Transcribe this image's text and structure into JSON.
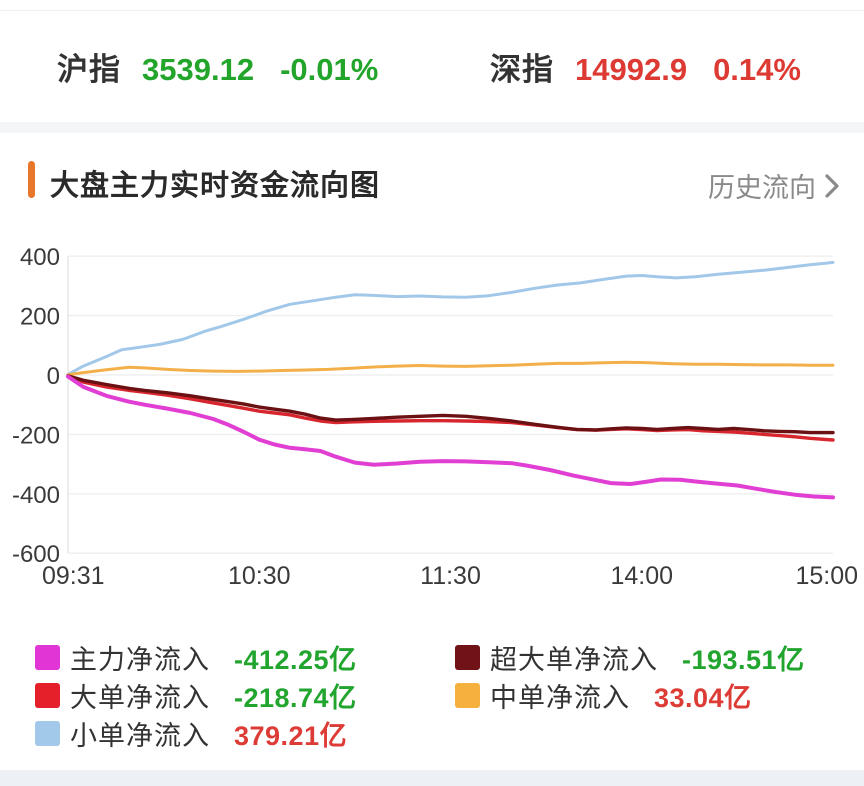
{
  "header": {
    "indices": [
      {
        "name": "沪指",
        "value": "3539.12",
        "change": "-0.01%",
        "color": "#23a42b"
      },
      {
        "name": "深指",
        "value": "14992.9",
        "change": "0.14%",
        "color": "#dd3a33"
      }
    ]
  },
  "section": {
    "title": "大盘主力实时资金流向图",
    "history_link": "历史流向",
    "accent_color": "#e8762b"
  },
  "chart_data": {
    "type": "line",
    "title": "大盘主力实时资金流向图",
    "unit": "亿",
    "grid": true,
    "legend_position": "bottom",
    "ylim": [
      -600,
      400
    ],
    "y_ticks": [
      400,
      200,
      0,
      -200,
      -400,
      -600
    ],
    "x_ticks": [
      "09:31",
      "10:30",
      "11:30",
      "14:00",
      "15:00"
    ],
    "axis_color": "#3a3a3a",
    "grid_color": "#efefef",
    "series": [
      {
        "name": "小单净流入",
        "final_value": 379.21,
        "color": "#a2c8e9",
        "width": 3,
        "points": [
          [
            0,
            2
          ],
          [
            0.02,
            30
          ],
          [
            0.05,
            62
          ],
          [
            0.07,
            85
          ],
          [
            0.09,
            92
          ],
          [
            0.12,
            103
          ],
          [
            0.15,
            120
          ],
          [
            0.18,
            148
          ],
          [
            0.2,
            163
          ],
          [
            0.23,
            188
          ],
          [
            0.26,
            215
          ],
          [
            0.29,
            238
          ],
          [
            0.32,
            250
          ],
          [
            0.35,
            262
          ],
          [
            0.375,
            270
          ],
          [
            0.4,
            268
          ],
          [
            0.43,
            264
          ],
          [
            0.46,
            266
          ],
          [
            0.49,
            263
          ],
          [
            0.52,
            262
          ],
          [
            0.55,
            267
          ],
          [
            0.58,
            278
          ],
          [
            0.61,
            292
          ],
          [
            0.64,
            303
          ],
          [
            0.67,
            310
          ],
          [
            0.7,
            322
          ],
          [
            0.73,
            333
          ],
          [
            0.75,
            335
          ],
          [
            0.77,
            331
          ],
          [
            0.795,
            327
          ],
          [
            0.82,
            331
          ],
          [
            0.85,
            339
          ],
          [
            0.88,
            346
          ],
          [
            0.91,
            353
          ],
          [
            0.94,
            362
          ],
          [
            0.97,
            371
          ],
          [
            0.99,
            376
          ],
          [
            1,
            379
          ]
        ]
      },
      {
        "name": "中单净流入",
        "final_value": 33.04,
        "color": "#f3b04a",
        "width": 3,
        "points": [
          [
            0,
            1
          ],
          [
            0.02,
            8
          ],
          [
            0.05,
            18
          ],
          [
            0.08,
            26
          ],
          [
            0.1,
            24
          ],
          [
            0.13,
            19
          ],
          [
            0.16,
            15
          ],
          [
            0.19,
            13
          ],
          [
            0.22,
            12
          ],
          [
            0.25,
            13
          ],
          [
            0.28,
            15
          ],
          [
            0.31,
            17
          ],
          [
            0.34,
            19
          ],
          [
            0.37,
            23
          ],
          [
            0.4,
            27
          ],
          [
            0.43,
            30
          ],
          [
            0.46,
            32
          ],
          [
            0.49,
            30
          ],
          [
            0.52,
            29
          ],
          [
            0.55,
            31
          ],
          [
            0.58,
            33
          ],
          [
            0.61,
            36
          ],
          [
            0.64,
            39
          ],
          [
            0.67,
            39
          ],
          [
            0.7,
            41
          ],
          [
            0.73,
            43
          ],
          [
            0.76,
            41
          ],
          [
            0.79,
            38
          ],
          [
            0.82,
            36
          ],
          [
            0.85,
            36
          ],
          [
            0.88,
            35
          ],
          [
            0.91,
            34
          ],
          [
            0.94,
            34
          ],
          [
            0.97,
            33
          ],
          [
            1,
            33
          ]
        ]
      },
      {
        "name": "大单净流入",
        "final_value": -218.74,
        "color": "#d8262e",
        "width": 3.4,
        "points": [
          [
            0,
            -3
          ],
          [
            0.02,
            -24
          ],
          [
            0.05,
            -40
          ],
          [
            0.08,
            -52
          ],
          [
            0.1,
            -58
          ],
          [
            0.13,
            -68
          ],
          [
            0.16,
            -80
          ],
          [
            0.19,
            -94
          ],
          [
            0.21,
            -103
          ],
          [
            0.23,
            -112
          ],
          [
            0.25,
            -122
          ],
          [
            0.27,
            -128
          ],
          [
            0.29,
            -134
          ],
          [
            0.31,
            -145
          ],
          [
            0.33,
            -155
          ],
          [
            0.35,
            -160
          ],
          [
            0.37,
            -158
          ],
          [
            0.4,
            -156
          ],
          [
            0.43,
            -155
          ],
          [
            0.46,
            -154
          ],
          [
            0.49,
            -154
          ],
          [
            0.52,
            -155
          ],
          [
            0.55,
            -157
          ],
          [
            0.58,
            -160
          ],
          [
            0.61,
            -168
          ],
          [
            0.64,
            -177
          ],
          [
            0.665,
            -184
          ],
          [
            0.69,
            -186
          ],
          [
            0.71,
            -183
          ],
          [
            0.73,
            -181
          ],
          [
            0.75,
            -184
          ],
          [
            0.77,
            -187
          ],
          [
            0.79,
            -185
          ],
          [
            0.81,
            -184
          ],
          [
            0.83,
            -188
          ],
          [
            0.85,
            -190
          ],
          [
            0.87,
            -192
          ],
          [
            0.89,
            -196
          ],
          [
            0.91,
            -200
          ],
          [
            0.93,
            -204
          ],
          [
            0.95,
            -208
          ],
          [
            0.97,
            -213
          ],
          [
            1,
            -219
          ]
        ]
      },
      {
        "name": "超大单净流入",
        "final_value": -193.51,
        "color": "#6b1113",
        "width": 3.4,
        "points": [
          [
            0,
            -3
          ],
          [
            0.02,
            -18
          ],
          [
            0.05,
            -32
          ],
          [
            0.08,
            -45
          ],
          [
            0.1,
            -52
          ],
          [
            0.13,
            -60
          ],
          [
            0.16,
            -70
          ],
          [
            0.19,
            -82
          ],
          [
            0.21,
            -90
          ],
          [
            0.23,
            -98
          ],
          [
            0.25,
            -108
          ],
          [
            0.27,
            -115
          ],
          [
            0.29,
            -122
          ],
          [
            0.31,
            -132
          ],
          [
            0.33,
            -145
          ],
          [
            0.35,
            -152
          ],
          [
            0.37,
            -150
          ],
          [
            0.4,
            -146
          ],
          [
            0.43,
            -142
          ],
          [
            0.46,
            -139
          ],
          [
            0.49,
            -136
          ],
          [
            0.52,
            -139
          ],
          [
            0.55,
            -146
          ],
          [
            0.58,
            -155
          ],
          [
            0.61,
            -166
          ],
          [
            0.64,
            -176
          ],
          [
            0.665,
            -183
          ],
          [
            0.69,
            -185
          ],
          [
            0.71,
            -181
          ],
          [
            0.73,
            -178
          ],
          [
            0.75,
            -180
          ],
          [
            0.77,
            -183
          ],
          [
            0.79,
            -180
          ],
          [
            0.81,
            -177
          ],
          [
            0.83,
            -180
          ],
          [
            0.85,
            -183
          ],
          [
            0.87,
            -180
          ],
          [
            0.89,
            -184
          ],
          [
            0.91,
            -188
          ],
          [
            0.93,
            -190
          ],
          [
            0.95,
            -191
          ],
          [
            0.97,
            -194
          ],
          [
            1,
            -194
          ]
        ]
      },
      {
        "name": "主力净流入",
        "final_value": -412.25,
        "color": "#e13fd4",
        "width": 4,
        "points": [
          [
            0,
            -5
          ],
          [
            0.02,
            -40
          ],
          [
            0.05,
            -70
          ],
          [
            0.08,
            -90
          ],
          [
            0.1,
            -100
          ],
          [
            0.13,
            -113
          ],
          [
            0.16,
            -128
          ],
          [
            0.19,
            -148
          ],
          [
            0.21,
            -168
          ],
          [
            0.23,
            -192
          ],
          [
            0.25,
            -218
          ],
          [
            0.27,
            -234
          ],
          [
            0.29,
            -245
          ],
          [
            0.31,
            -250
          ],
          [
            0.33,
            -256
          ],
          [
            0.35,
            -275
          ],
          [
            0.375,
            -295
          ],
          [
            0.4,
            -302
          ],
          [
            0.43,
            -298
          ],
          [
            0.46,
            -292
          ],
          [
            0.49,
            -290
          ],
          [
            0.52,
            -291
          ],
          [
            0.55,
            -294
          ],
          [
            0.58,
            -297
          ],
          [
            0.6,
            -305
          ],
          [
            0.63,
            -320
          ],
          [
            0.66,
            -338
          ],
          [
            0.69,
            -354
          ],
          [
            0.71,
            -364
          ],
          [
            0.735,
            -367
          ],
          [
            0.755,
            -360
          ],
          [
            0.775,
            -352
          ],
          [
            0.8,
            -353
          ],
          [
            0.825,
            -360
          ],
          [
            0.85,
            -366
          ],
          [
            0.875,
            -372
          ],
          [
            0.9,
            -383
          ],
          [
            0.925,
            -394
          ],
          [
            0.95,
            -403
          ],
          [
            0.975,
            -409
          ],
          [
            1,
            -412
          ]
        ]
      }
    ]
  },
  "legend": {
    "left": [
      {
        "label": "主力净流入",
        "value": "-412.25亿",
        "swatch": "#e135d6",
        "value_color": "#22a52f"
      },
      {
        "label": "大单净流入",
        "value": "-218.74亿",
        "swatch": "#e6202b",
        "value_color": "#22a52f"
      },
      {
        "label": "小单净流入",
        "value": "379.21亿",
        "swatch": "#a3c9ea",
        "value_color": "#dd3b35"
      }
    ],
    "right": [
      {
        "label": "超大单净流入",
        "value": "-193.51亿",
        "swatch": "#701216",
        "value_color": "#22a52f"
      },
      {
        "label": "中单净流入",
        "value": "33.04亿",
        "swatch": "#f5b03e",
        "value_color": "#dd3b35"
      }
    ]
  }
}
